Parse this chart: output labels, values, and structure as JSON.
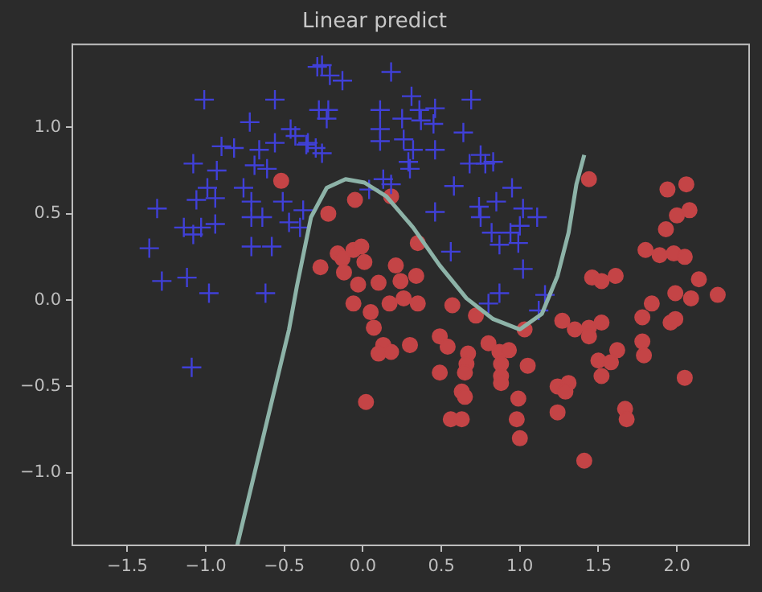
{
  "chart_data": {
    "type": "scatter",
    "title": "Linear predict",
    "xlim": [
      -1.85,
      2.46
    ],
    "ylim": [
      -1.42,
      1.48
    ],
    "xticks": [
      {
        "value": -1.5,
        "label": "−1.5"
      },
      {
        "value": -1.0,
        "label": "−1.0"
      },
      {
        "value": -0.5,
        "label": "−0.5"
      },
      {
        "value": 0.0,
        "label": "0.0"
      },
      {
        "value": 0.5,
        "label": "0.5"
      },
      {
        "value": 1.0,
        "label": "1.0"
      },
      {
        "value": 1.5,
        "label": "1.5"
      },
      {
        "value": 2.0,
        "label": "2.0"
      }
    ],
    "yticks": [
      {
        "value": -1.0,
        "label": "−1.0"
      },
      {
        "value": -0.5,
        "label": "−0.5"
      },
      {
        "value": 0.0,
        "label": "0.0"
      },
      {
        "value": 0.5,
        "label": "0.5"
      },
      {
        "value": 1.0,
        "label": "1.0"
      }
    ],
    "grid": false,
    "legend": false,
    "series": [
      {
        "type": "scatter",
        "marker": "cross",
        "color": "#4040d8",
        "x": [
          -1.01,
          -0.56,
          -0.29,
          -0.28,
          -0.72,
          -0.46,
          -0.43,
          -0.36,
          -0.3,
          -0.56,
          -0.9,
          -0.82,
          -0.66,
          -1.08,
          -0.93,
          -0.69,
          -0.61,
          -0.99,
          -0.76,
          -1.06,
          -0.94,
          -0.71,
          -0.51,
          -0.38,
          -1.31,
          -0.71,
          -0.64,
          -1.14,
          -1.03,
          -1.08,
          -0.94,
          -0.47,
          -0.4,
          -1.36,
          -0.71,
          -0.58,
          -1.28,
          -1.12,
          -0.98,
          -0.62,
          -1.09,
          -0.26,
          -0.21,
          -0.13,
          0.18,
          -0.22,
          -0.23,
          0.31,
          0.11,
          0.36,
          0.46,
          0.69,
          0.25,
          0.37,
          0.45,
          0.11,
          0.64,
          -0.35,
          -0.26,
          0.26,
          0.32,
          0.46,
          0.11,
          0.29,
          0.3,
          0.75,
          0.68,
          0.78,
          0.83,
          0.13,
          0.18,
          0.04,
          0.58,
          0.95,
          0.85,
          0.74,
          0.46,
          1.02,
          0.75,
          0.82,
          0.94,
          1.0,
          0.87,
          0.99,
          0.56,
          1.02,
          0.8,
          0.87,
          1.11,
          1.16,
          1.12
        ],
        "values": [
          1.16,
          1.16,
          1.35,
          1.1,
          1.03,
          0.99,
          0.95,
          0.9,
          0.88,
          0.91,
          0.89,
          0.88,
          0.87,
          0.79,
          0.75,
          0.78,
          0.76,
          0.65,
          0.65,
          0.58,
          0.59,
          0.57,
          0.57,
          0.52,
          0.53,
          0.48,
          0.48,
          0.42,
          0.42,
          0.38,
          0.44,
          0.45,
          0.42,
          0.3,
          0.31,
          0.31,
          0.11,
          0.13,
          0.04,
          0.04,
          -0.39,
          1.36,
          1.3,
          1.27,
          1.32,
          1.1,
          1.05,
          1.18,
          1.1,
          1.1,
          1.11,
          1.16,
          1.05,
          1.04,
          1.02,
          0.99,
          0.97,
          0.91,
          0.85,
          0.93,
          0.87,
          0.87,
          0.92,
          0.8,
          0.76,
          0.84,
          0.79,
          0.79,
          0.8,
          0.7,
          0.67,
          0.64,
          0.66,
          0.65,
          0.57,
          0.54,
          0.51,
          0.53,
          0.48,
          0.39,
          0.39,
          0.43,
          0.32,
          0.33,
          0.28,
          0.18,
          -0.02,
          0.04,
          0.48,
          0.03,
          -0.06
        ]
      },
      {
        "type": "scatter",
        "marker": "circle",
        "color": "#c44446",
        "x": [
          -0.52,
          -0.27,
          0.18,
          -0.05,
          -0.22,
          0.35,
          -0.16,
          -0.06,
          -0.01,
          -0.13,
          -0.12,
          0.01,
          0.21,
          -0.03,
          0.1,
          0.24,
          0.34,
          -0.06,
          0.05,
          0.17,
          0.26,
          0.35,
          0.07,
          0.57,
          0.72,
          0.13,
          0.1,
          0.18,
          0.3,
          0.49,
          0.54,
          0.8,
          0.87,
          0.93,
          0.67,
          0.66,
          0.88,
          0.49,
          0.65,
          0.88,
          0.88,
          0.63,
          0.65,
          0.99,
          0.02,
          0.56,
          0.63,
          0.98,
          1.0,
          1.03,
          1.05,
          1.44,
          1.94,
          2.06,
          2.0,
          2.08,
          1.93,
          1.8,
          1.89,
          1.98,
          2.05,
          1.46,
          1.52,
          1.61,
          2.14,
          1.99,
          2.09,
          2.26,
          1.84,
          1.78,
          1.96,
          1.99,
          1.27,
          1.35,
          1.44,
          1.52,
          1.44,
          1.78,
          1.79,
          1.62,
          1.5,
          1.58,
          1.52,
          2.05,
          1.24,
          1.31,
          1.29,
          1.24,
          1.67,
          1.68,
          1.41
        ],
        "values": [
          0.69,
          0.19,
          0.6,
          0.58,
          0.5,
          0.33,
          0.27,
          0.29,
          0.31,
          0.24,
          0.16,
          0.22,
          0.2,
          0.09,
          0.1,
          0.11,
          0.14,
          -0.02,
          -0.07,
          -0.02,
          0.01,
          -0.02,
          -0.16,
          -0.03,
          -0.09,
          -0.26,
          -0.31,
          -0.3,
          -0.26,
          -0.21,
          -0.27,
          -0.25,
          -0.3,
          -0.29,
          -0.31,
          -0.37,
          -0.37,
          -0.42,
          -0.42,
          -0.44,
          -0.48,
          -0.53,
          -0.56,
          -0.57,
          -0.59,
          -0.69,
          -0.69,
          -0.69,
          -0.8,
          -0.17,
          -0.38,
          0.7,
          0.64,
          0.67,
          0.49,
          0.52,
          0.41,
          0.29,
          0.26,
          0.27,
          0.25,
          0.13,
          0.11,
          0.14,
          0.12,
          0.04,
          0.01,
          0.03,
          -0.02,
          -0.1,
          -0.13,
          -0.11,
          -0.12,
          -0.17,
          -0.16,
          -0.13,
          -0.21,
          -0.24,
          -0.32,
          -0.29,
          -0.35,
          -0.36,
          -0.44,
          -0.45,
          -0.5,
          -0.48,
          -0.53,
          -0.65,
          -0.63,
          -0.69,
          -0.93
        ]
      },
      {
        "type": "line",
        "marker": "none",
        "color": "#8db3a8",
        "x": [
          -0.8,
          -0.47,
          -0.42,
          -0.33,
          -0.23,
          -0.11,
          0.01,
          0.15,
          0.32,
          0.49,
          0.66,
          0.83,
          1.0,
          1.14,
          1.24,
          1.31,
          1.36,
          1.41
        ],
        "values": [
          -1.42,
          -0.17,
          0.08,
          0.48,
          0.65,
          0.7,
          0.68,
          0.6,
          0.42,
          0.2,
          0.01,
          -0.11,
          -0.17,
          -0.08,
          0.14,
          0.39,
          0.67,
          0.84
        ]
      }
    ]
  }
}
